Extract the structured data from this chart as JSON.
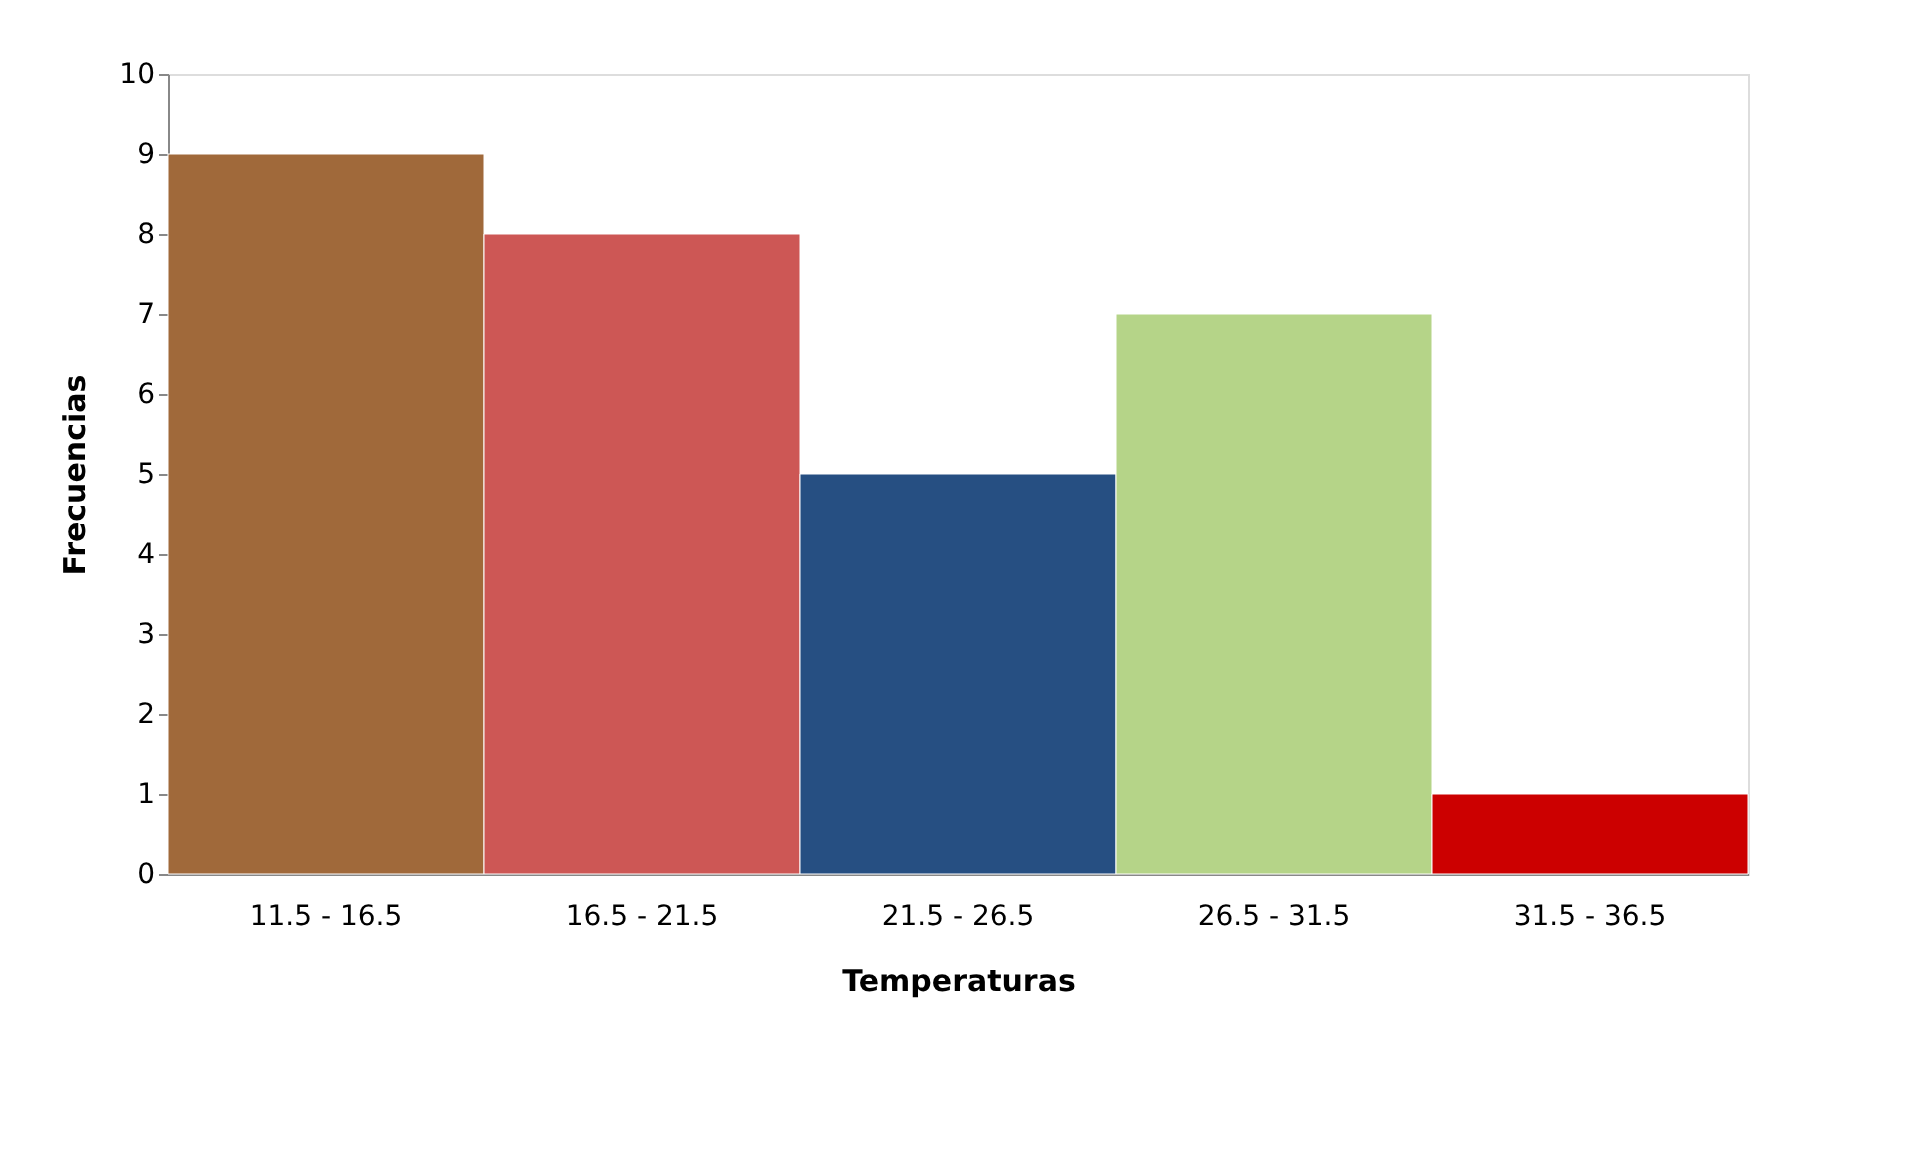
{
  "chart_data": {
    "type": "bar",
    "xlabel": "Temperaturas",
    "ylabel": "Frecuencias",
    "categories": [
      "11.5 - 16.5",
      "16.5 - 21.5",
      "21.5 - 26.5",
      "26.5 - 31.5",
      "31.5 - 36.5"
    ],
    "values": [
      9,
      8,
      5,
      7,
      1
    ],
    "colors": [
      "#a0693a",
      "#cd5755",
      "#264f82",
      "#b5d488",
      "#cc0000"
    ],
    "ylim": [
      0,
      10
    ],
    "yticks": [
      0,
      1,
      2,
      3,
      4,
      5,
      6,
      7,
      8,
      9,
      10
    ],
    "grid": false
  }
}
